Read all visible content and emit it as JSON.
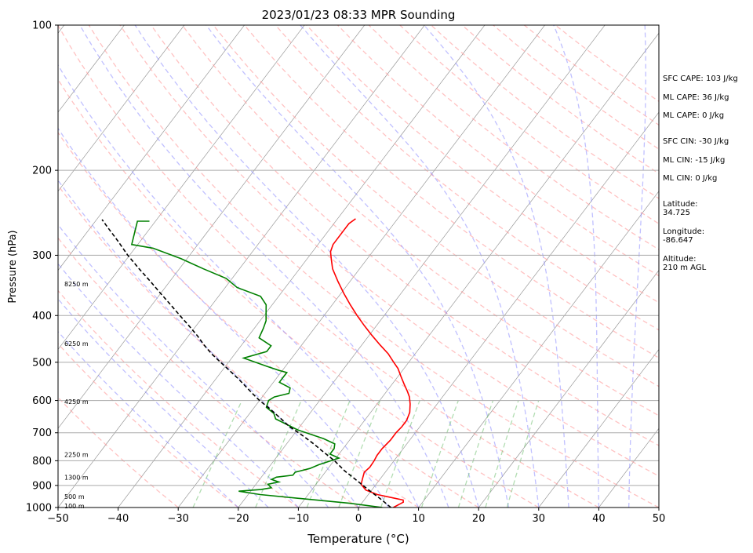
{
  "chart_data": {
    "type": "line",
    "title": "2023/01/23 08:33 MPR Sounding",
    "xlabel": "Temperature (°C)",
    "ylabel": "Pressure (hPa)",
    "xlim": [
      -50,
      50
    ],
    "ylim": [
      1000,
      100
    ],
    "y_scale": "log",
    "x_ticks": [
      -50,
      -40,
      -30,
      -20,
      -10,
      0,
      10,
      20,
      30,
      40,
      50
    ],
    "y_ticks": [
      100,
      200,
      300,
      400,
      500,
      600,
      700,
      800,
      900,
      1000
    ],
    "grid": "horizontal isobars",
    "skew": "skew-T log-p",
    "series": [
      {
        "color": "#ff0000",
        "points": [
          [
            5.8,
            1000
          ],
          [
            6.8,
            975
          ],
          [
            6.5,
            965
          ],
          [
            4.5,
            955
          ],
          [
            1.5,
            940
          ],
          [
            -1,
            920
          ],
          [
            -2.5,
            895
          ],
          [
            -3,
            870
          ],
          [
            -3.5,
            845
          ],
          [
            -3.2,
            825
          ],
          [
            -3.3,
            800
          ],
          [
            -3.5,
            780
          ],
          [
            -3.5,
            755
          ],
          [
            -3.2,
            725
          ],
          [
            -3.2,
            700
          ],
          [
            -3,
            680
          ],
          [
            -3,
            660
          ],
          [
            -3.5,
            635
          ],
          [
            -4.5,
            610
          ],
          [
            -5.5,
            590
          ],
          [
            -6.5,
            575
          ],
          [
            -8,
            555
          ],
          [
            -9.5,
            535
          ],
          [
            -11,
            515
          ],
          [
            -12.5,
            500
          ],
          [
            -14.5,
            480
          ],
          [
            -17,
            460
          ],
          [
            -19.5,
            440
          ],
          [
            -22,
            420
          ],
          [
            -24.5,
            400
          ],
          [
            -27,
            380
          ],
          [
            -29.5,
            360
          ],
          [
            -32,
            340
          ],
          [
            -34.5,
            320
          ],
          [
            -36,
            305
          ],
          [
            -37,
            295
          ],
          [
            -37.5,
            285
          ],
          [
            -37.5,
            275
          ],
          [
            -37.5,
            265
          ],
          [
            -37.5,
            258
          ],
          [
            -37,
            252
          ]
        ]
      },
      {
        "color": "#008000",
        "points": [
          [
            4,
            1000
          ],
          [
            -2,
            980
          ],
          [
            -10,
            960
          ],
          [
            -18,
            940
          ],
          [
            -22,
            925
          ],
          [
            -18.5,
            918
          ],
          [
            -17,
            910
          ],
          [
            -18,
            895
          ],
          [
            -16.5,
            885
          ],
          [
            -18,
            875
          ],
          [
            -17.5,
            865
          ],
          [
            -15,
            857
          ],
          [
            -15,
            845
          ],
          [
            -13,
            830
          ],
          [
            -12,
            815
          ],
          [
            -10.5,
            800
          ],
          [
            -9.5,
            790
          ],
          [
            -11.5,
            775
          ],
          [
            -11.5,
            755
          ],
          [
            -12,
            738
          ],
          [
            -14.5,
            720
          ],
          [
            -20,
            690
          ],
          [
            -25,
            655
          ],
          [
            -26,
            638
          ],
          [
            -28,
            620
          ],
          [
            -28.5,
            600
          ],
          [
            -28,
            590
          ],
          [
            -26,
            580
          ],
          [
            -26.5,
            565
          ],
          [
            -29,
            550
          ],
          [
            -29,
            540
          ],
          [
            -29,
            525
          ],
          [
            -30.5,
            520
          ],
          [
            -33,
            510
          ],
          [
            -38,
            490
          ],
          [
            -35,
            475
          ],
          [
            -35,
            462
          ],
          [
            -38,
            445
          ],
          [
            -38.5,
            425
          ],
          [
            -39,
            410
          ],
          [
            -40,
            395
          ],
          [
            -41,
            380
          ],
          [
            -43,
            365
          ],
          [
            -48,
            350
          ],
          [
            -51,
            335
          ],
          [
            -56,
            320
          ],
          [
            -61,
            305
          ],
          [
            -67,
            290
          ],
          [
            -71,
            285
          ],
          [
            -73,
            255
          ],
          [
            -71,
            255
          ]
        ]
      },
      {
        "color": "#000000",
        "style": "dashed",
        "points": [
          [
            5.4,
            1000
          ],
          [
            2.6,
            960
          ],
          [
            -0.5,
            920
          ],
          [
            -3.6,
            880
          ],
          [
            -6.9,
            840
          ],
          [
            -9.9,
            800
          ],
          [
            -13.5,
            760
          ],
          [
            -15.3,
            740
          ],
          [
            -17.3,
            720
          ],
          [
            -19.4,
            700
          ],
          [
            -21.7,
            680
          ],
          [
            -23.6,
            660
          ],
          [
            -25.6,
            640
          ],
          [
            -27.7,
            620
          ],
          [
            -30.0,
            600
          ],
          [
            -32.1,
            580
          ],
          [
            -34.2,
            560
          ],
          [
            -36.4,
            540
          ],
          [
            -38.8,
            520
          ],
          [
            -41.3,
            500
          ],
          [
            -43.9,
            480
          ],
          [
            -46.3,
            460
          ],
          [
            -48.6,
            440
          ],
          [
            -51.2,
            420
          ],
          [
            -54.0,
            400
          ],
          [
            -56.9,
            380
          ],
          [
            -60.0,
            360
          ],
          [
            -63.2,
            340
          ],
          [
            -66.7,
            320
          ],
          [
            -70.3,
            300
          ],
          [
            -73.8,
            280
          ],
          [
            -77.7,
            260
          ],
          [
            -79.1,
            253
          ]
        ]
      }
    ],
    "height_labels": [
      {
        "text": "100 m",
        "p": 992
      },
      {
        "text": "500 m",
        "p": 949
      },
      {
        "text": "1300 m",
        "p": 866
      },
      {
        "text": "2250 m",
        "p": 777
      },
      {
        "text": "4250 m",
        "p": 603
      },
      {
        "text": "6250 m",
        "p": 457
      },
      {
        "text": "8250 m",
        "p": 344
      }
    ]
  },
  "sidebar": {
    "sfc_cape": "SFC CAPE: 103 J/kg",
    "ml_cape_1": "ML CAPE: 36 J/kg",
    "ml_cape_2": "ML CAPE: 0 J/kg",
    "sfc_cin": "SFC CIN: -30 J/kg",
    "ml_cin_1": "ML CIN: -15 J/kg",
    "ml_cin_2": "ML CIN: 0 J/kg",
    "lat_label": "Latitude:",
    "lat_value": "34.725",
    "lon_label": "Longitude:",
    "lon_value": "-86.647",
    "alt_label": "Altitude:",
    "alt_value": "210 m AGL"
  }
}
